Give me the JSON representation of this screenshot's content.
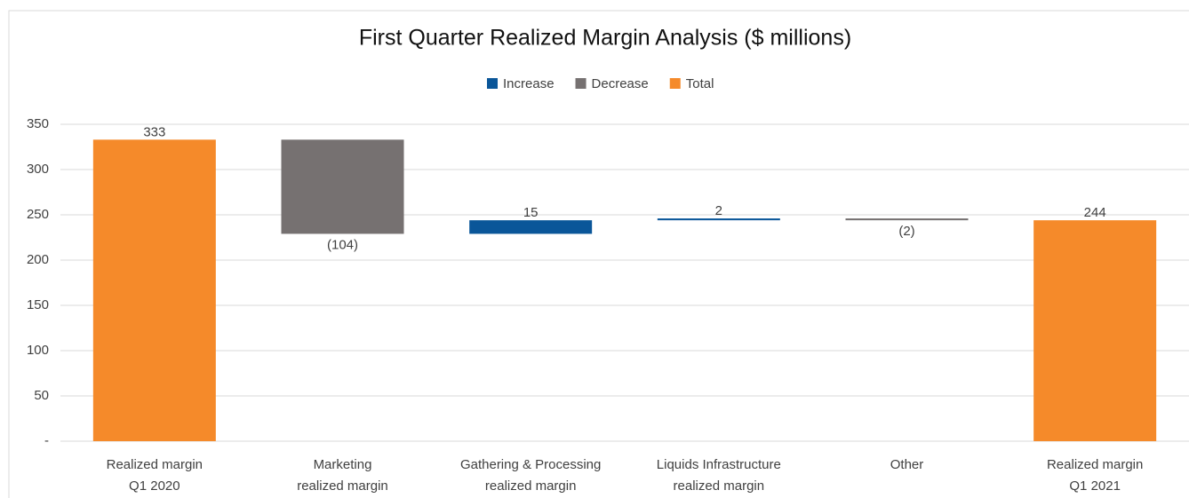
{
  "chart_data": {
    "type": "waterfall",
    "title": "First Quarter Realized Margin Analysis ($ millions)",
    "categories": [
      [
        "Realized margin",
        "Q1 2020"
      ],
      [
        "Marketing",
        "realized margin"
      ],
      [
        "Gathering & Processing",
        "realized margin"
      ],
      [
        "Liquids Infrastructure",
        "realized margin"
      ],
      [
        "Other"
      ],
      [
        "Realized margin",
        "Q1 2021"
      ]
    ],
    "values": [
      333,
      -104,
      15,
      2,
      -2,
      244
    ],
    "value_labels": [
      "333",
      "(104)",
      "15",
      "2",
      "(2)",
      "244"
    ],
    "total_indices": [
      0,
      5
    ],
    "series": [
      {
        "name": "Increase",
        "color": "#0a5699"
      },
      {
        "name": "Decrease",
        "color": "#767171"
      },
      {
        "name": "Total",
        "color": "#f58a2a"
      }
    ],
    "ylim": [
      0,
      350
    ],
    "yticks": [
      {
        "value": 0,
        "label": "-"
      },
      50,
      100,
      150,
      200,
      250,
      300,
      350
    ],
    "grid": true,
    "legend": "top"
  }
}
